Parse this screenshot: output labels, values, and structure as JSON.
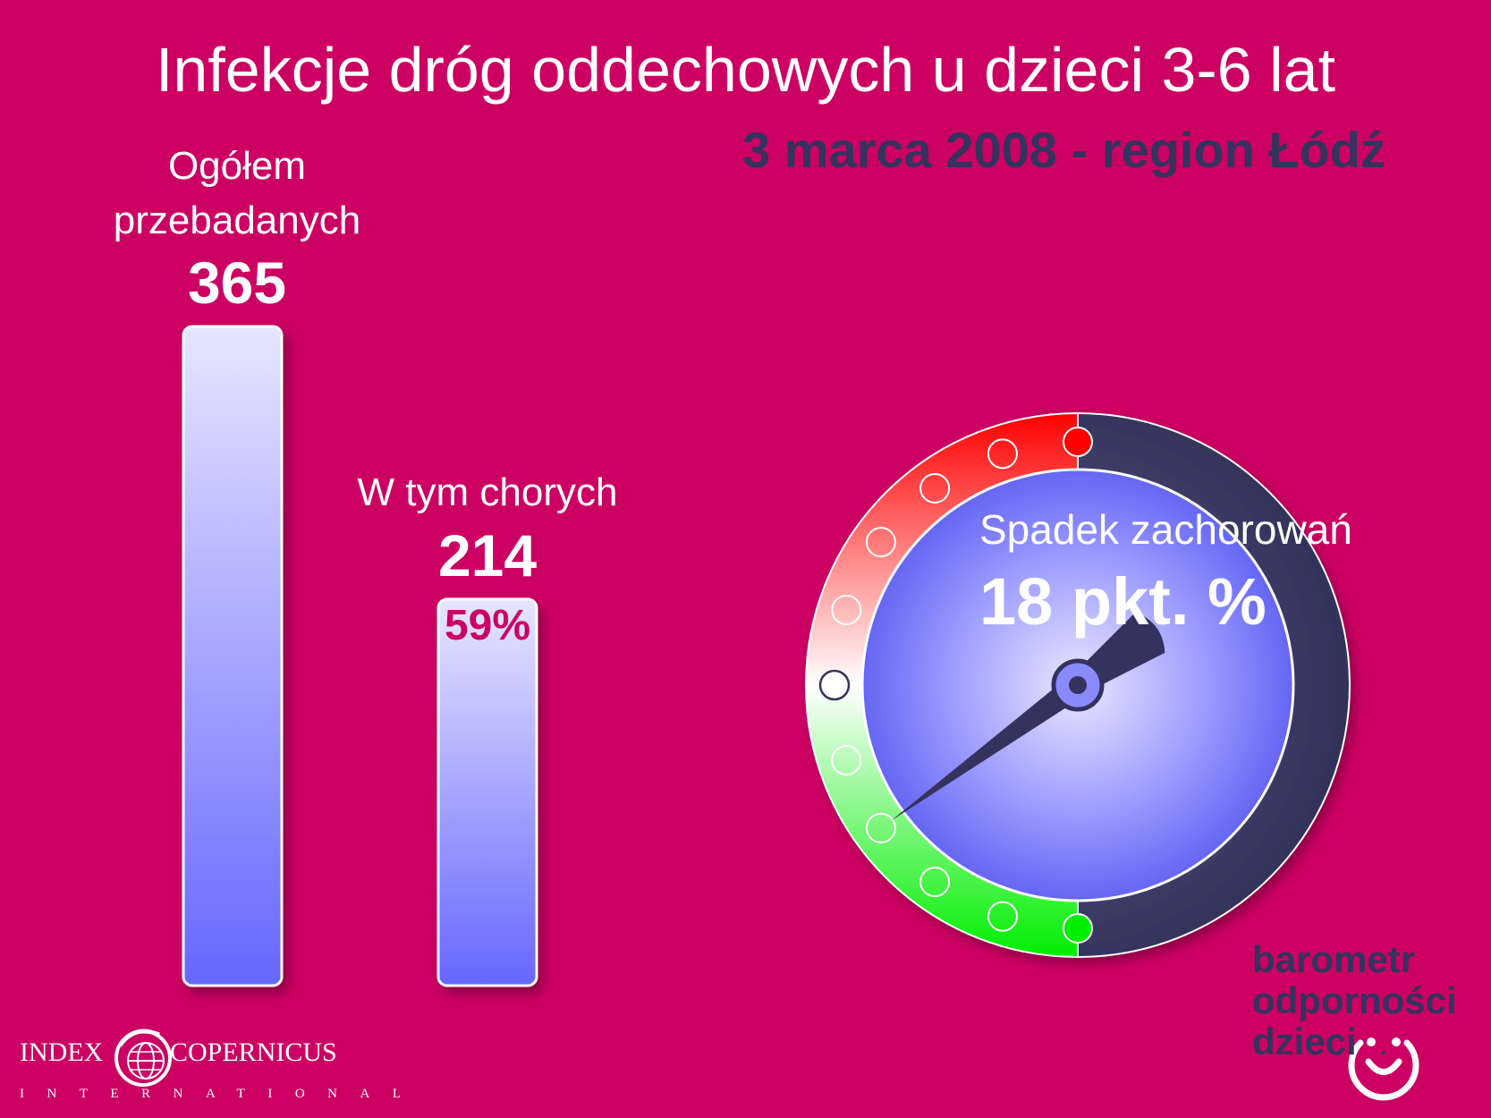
{
  "title": "Infekcje dróg oddechowych u dzieci 3-6 lat",
  "subtitle": "3 marca 2008 - region Łódź",
  "colors": {
    "background": "#CC0063",
    "dark_navy": "#33335E",
    "bar_top": "#E0E0FF",
    "bar_bottom": "#6666FF",
    "gauge_red": "#FF0000",
    "gauge_green": "#00EE00"
  },
  "chart_data": [
    {
      "type": "bar",
      "categories": [
        "Ogółem przebadanych",
        "W tym chorych"
      ],
      "values": [
        365,
        214
      ],
      "data_labels": [
        "365",
        "214"
      ],
      "extra_labels": {
        "W tym chorych": "59%"
      },
      "category_label_lines": [
        [
          "Ogółem",
          "przebadanych"
        ],
        [
          "W tym chorych"
        ]
      ],
      "ylim": [
        0,
        365
      ],
      "grid": false,
      "legend": "none"
    },
    {
      "type": "gauge",
      "title": "Spadek zachorowań",
      "value_label": "18 pkt. %",
      "scale_marks": 11,
      "needle_mark": 7,
      "scale_colors": [
        "red",
        "white",
        "green"
      ]
    }
  ],
  "logo": {
    "lines": [
      "barometr",
      "odporności",
      "dzieci"
    ],
    "icon": "smiley-icon"
  },
  "publisher": {
    "word1": "INDEX",
    "word2": "COPERNICUS",
    "tagline": "INTERNATIONAL",
    "icon": "globe-icon"
  }
}
